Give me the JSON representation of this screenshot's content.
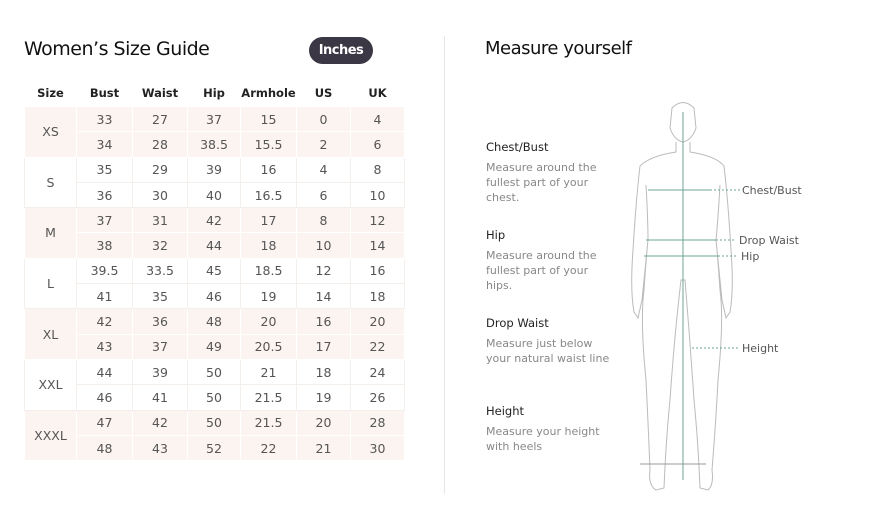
{
  "size_guide": {
    "title": "Women’s Size Guide",
    "unit_button": "Inches",
    "headers": [
      "Size",
      "Bust",
      "Waist",
      "Hip",
      "Armhole",
      "US",
      "UK"
    ],
    "groups": [
      {
        "size": "XS",
        "rows": [
          [
            "33",
            "27",
            "37",
            "15",
            "0",
            "4"
          ],
          [
            "34",
            "28",
            "38.5",
            "15.5",
            "2",
            "6"
          ]
        ]
      },
      {
        "size": "S",
        "rows": [
          [
            "35",
            "29",
            "39",
            "16",
            "4",
            "8"
          ],
          [
            "36",
            "30",
            "40",
            "16.5",
            "6",
            "10"
          ]
        ]
      },
      {
        "size": "M",
        "rows": [
          [
            "37",
            "31",
            "42",
            "17",
            "8",
            "12"
          ],
          [
            "38",
            "32",
            "44",
            "18",
            "10",
            "14"
          ]
        ]
      },
      {
        "size": "L",
        "rows": [
          [
            "39.5",
            "33.5",
            "45",
            "18.5",
            "12",
            "16"
          ],
          [
            "41",
            "35",
            "46",
            "19",
            "14",
            "18"
          ]
        ]
      },
      {
        "size": "XL",
        "rows": [
          [
            "42",
            "36",
            "48",
            "20",
            "16",
            "20"
          ],
          [
            "43",
            "37",
            "49",
            "20.5",
            "17",
            "22"
          ]
        ]
      },
      {
        "size": "XXL",
        "rows": [
          [
            "44",
            "39",
            "50",
            "21",
            "18",
            "24"
          ],
          [
            "46",
            "41",
            "50",
            "21.5",
            "19",
            "26"
          ]
        ]
      },
      {
        "size": "XXXL",
        "rows": [
          [
            "47",
            "42",
            "50",
            "21.5",
            "20",
            "28"
          ],
          [
            "48",
            "43",
            "52",
            "22",
            "21",
            "30"
          ]
        ]
      }
    ]
  },
  "measure": {
    "title": "Measure yourself",
    "sections": [
      {
        "heading": "Chest/Bust",
        "text": "Measure around the fullest part of your chest."
      },
      {
        "heading": "Hip",
        "text": "Measure around the fullest part of your hips."
      },
      {
        "heading": "Drop Waist",
        "text": "Measure just below your natural waist line"
      },
      {
        "heading": "Height",
        "text": "Measure your height with heels"
      }
    ],
    "figure_labels": {
      "chest": "Chest/Bust",
      "waist": "Drop Waist",
      "hip": "Hip",
      "height": "Height"
    }
  },
  "colors": {
    "button": "#3b3744",
    "row_tint": "#fcf4f1",
    "measure_line": "#6fa597"
  }
}
